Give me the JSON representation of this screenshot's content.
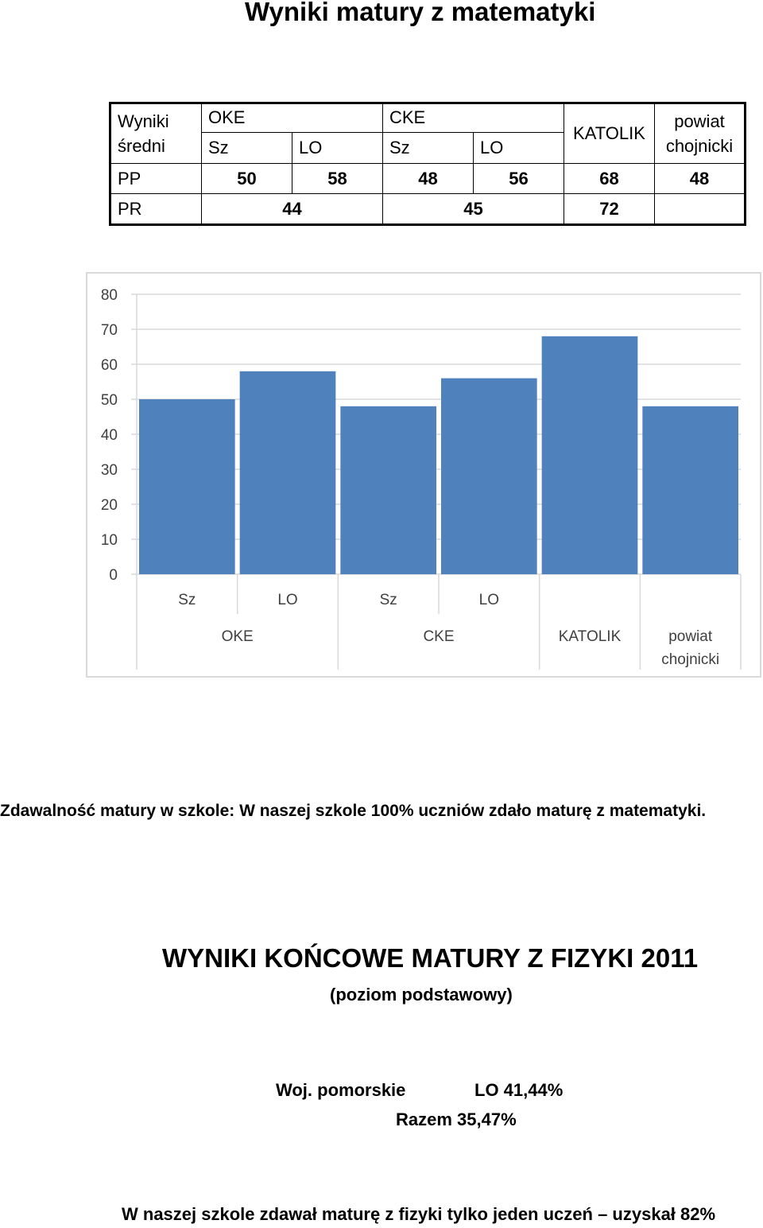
{
  "page": {
    "title": "Wyniki matury z matematyki"
  },
  "table": {
    "corner_line1": "Wyniki",
    "corner_line2": "średni",
    "group_oke": "OKE",
    "group_cke": "CKE",
    "katolik": "KATOLIK",
    "powiat_line1": "powiat",
    "powiat_line2": "chojnicki",
    "sub_sz1": "Sz",
    "sub_lo1": "LO",
    "sub_sz2": "Sz",
    "sub_lo2": "LO",
    "row_pp_label": "PP",
    "row_pp_values": [
      "50",
      "58",
      "48",
      "56",
      "68",
      "48"
    ],
    "row_pr_label": "PR",
    "row_pr_values": [
      "44",
      "45",
      "72"
    ]
  },
  "chart_data": {
    "type": "bar",
    "categories": [
      "Sz",
      "LO",
      "Sz",
      "LO",
      "",
      ""
    ],
    "groups": [
      "OKE",
      "CKE",
      "KATOLIK",
      "powiat\nchojnicki"
    ],
    "values": [
      50,
      58,
      48,
      56,
      68,
      48
    ],
    "ylim": [
      0,
      80
    ],
    "yticks": [
      "0",
      "10",
      "20",
      "30",
      "40",
      "50",
      "60",
      "70",
      "80"
    ],
    "bar_color": "#4f81bd",
    "grid": true
  },
  "text": {
    "pass_rate": "Zdawalność matury w szkole: W naszej szkole 100% uczniów zdało maturę z matematyki.",
    "physics_title": "WYNIKI KOŃCOWE MATURY Z FIZYKI 2011",
    "physics_subtitle": "(poziom podstawowy)",
    "woj": "Woj. pomorskie",
    "lo": "LO   41,44%",
    "razem": "Razem 35,47%",
    "footer": "W naszej szkole zdawał maturę z fizyki tylko jeden uczeń – uzyskał 82%"
  }
}
